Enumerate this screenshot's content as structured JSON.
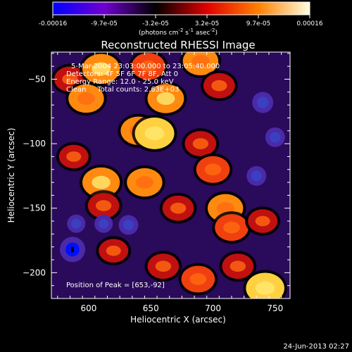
{
  "chart_data": {
    "type": "heatmap",
    "title": "Reconstructed RHESSI Image",
    "xlabel": "Heliocentric X (arcsec)",
    "ylabel": "Heliocentric Y (arcsec)",
    "xlim": [
      570,
      762
    ],
    "ylim": [
      -220,
      -29
    ],
    "x_ticks": [
      600,
      650,
      700,
      750
    ],
    "y_ticks": [
      -50,
      -100,
      -150,
      -200
    ],
    "colorbar": {
      "ticks": [
        "-0.00016",
        "-9.7e-05",
        "-3.2e-05",
        "3.2e-05",
        "9.7e-05",
        "0.00016"
      ],
      "range": [
        -0.00016,
        0.00016
      ],
      "units_prefix": "(photons cm",
      "units_exp1": "-2",
      "units_mid": " s",
      "units_exp2": "-1",
      "units_mid2": " asec",
      "units_exp3": "-2",
      "units_suffix": ")",
      "colors": [
        "#0000ff",
        "#7000d0",
        "#000000",
        "#e00000",
        "#ff8000",
        "#ffffe0"
      ]
    },
    "annotations": [
      "5-Mar-2004 23:03:00.000 to 23:05:40.000",
      "Detectors: 4F 5F 6F 7F 8F, Att 0",
      "Energy Range: 12.0 - 25.0 keV",
      "Clean     Total counts: 2.63E+03"
    ],
    "peak_label": "Position of Peak = [653,-92]",
    "peak": [
      653,
      -92
    ],
    "blobs": [
      {
        "x": 585,
        "y": -50,
        "w": 0.6
      },
      {
        "x": 610,
        "y": -42,
        "w": 0.9
      },
      {
        "x": 648,
        "y": -40,
        "w": 0.7
      },
      {
        "x": 690,
        "y": -36,
        "w": 0.8
      },
      {
        "x": 705,
        "y": -55,
        "w": 0.6
      },
      {
        "x": 598,
        "y": -65,
        "w": 0.8
      },
      {
        "x": 662,
        "y": -65,
        "w": 0.85
      },
      {
        "x": 640,
        "y": -90,
        "w": 0.8
      },
      {
        "x": 653,
        "y": -92,
        "w": 1.0
      },
      {
        "x": 690,
        "y": -100,
        "w": 0.6
      },
      {
        "x": 700,
        "y": -120,
        "w": 0.7
      },
      {
        "x": 588,
        "y": -110,
        "w": 0.5
      },
      {
        "x": 610,
        "y": -130,
        "w": 0.9
      },
      {
        "x": 645,
        "y": -130,
        "w": 0.8
      },
      {
        "x": 612,
        "y": -148,
        "w": 0.6
      },
      {
        "x": 672,
        "y": -150,
        "w": 0.6
      },
      {
        "x": 710,
        "y": -150,
        "w": 0.8
      },
      {
        "x": 715,
        "y": -165,
        "w": 0.7
      },
      {
        "x": 740,
        "y": -160,
        "w": 0.5
      },
      {
        "x": 660,
        "y": -195,
        "w": 0.6
      },
      {
        "x": 688,
        "y": -205,
        "w": 0.7
      },
      {
        "x": 720,
        "y": -195,
        "w": 0.6
      },
      {
        "x": 742,
        "y": -212,
        "w": 0.95
      },
      {
        "x": 620,
        "y": -183,
        "w": 0.5
      }
    ],
    "negative_blobs": [
      {
        "x": 587,
        "y": -182,
        "w": 1.0
      },
      {
        "x": 612,
        "y": -162,
        "w": 0.5
      },
      {
        "x": 632,
        "y": -163,
        "w": 0.6
      },
      {
        "x": 590,
        "y": -162,
        "w": 0.5
      },
      {
        "x": 740,
        "y": -68,
        "w": 0.7
      },
      {
        "x": 750,
        "y": -95,
        "w": 0.6
      },
      {
        "x": 735,
        "y": -125,
        "w": 0.6
      }
    ]
  },
  "footer": {
    "timestamp": "24-Jun-2013 02:27"
  }
}
